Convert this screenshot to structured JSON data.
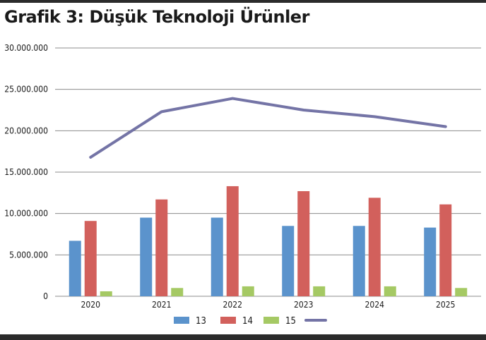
{
  "title": "Grafik 3: Düşük Teknoloji Ürünler",
  "colors": {
    "series_13": "#5b93cc",
    "series_14": "#d2605c",
    "series_15": "#a5c964",
    "series_line": "#7474a6",
    "gridline": "#8c8c8c"
  },
  "chart_data": {
    "type": "bar",
    "title": "Grafik 3: Düşük Teknoloji Ürünler",
    "xlabel": "",
    "ylabel": "",
    "categories": [
      "2020",
      "2021",
      "2022",
      "2023",
      "2024",
      "2025"
    ],
    "ylim": [
      0,
      30000000
    ],
    "yticks": [
      "0",
      "5.000.000",
      "10.000.000",
      "15.000.000",
      "20.000.000",
      "25.000.000",
      "30.000.000"
    ],
    "grid": true,
    "legend_position": "bottom",
    "series": [
      {
        "name": "13",
        "type": "bar",
        "color": "#5b93cc",
        "values": [
          6700000,
          9500000,
          9500000,
          8500000,
          8500000,
          8300000
        ]
      },
      {
        "name": "14",
        "type": "bar",
        "color": "#d2605c",
        "values": [
          9100000,
          11700000,
          13300000,
          12700000,
          11900000,
          11100000
        ]
      },
      {
        "name": "15",
        "type": "bar",
        "color": "#a5c964",
        "values": [
          600000,
          1000000,
          1200000,
          1200000,
          1200000,
          1000000
        ]
      },
      {
        "name": "",
        "type": "line",
        "color": "#7474a6",
        "values": [
          16800000,
          22300000,
          23900000,
          22500000,
          21700000,
          20500000
        ]
      }
    ]
  }
}
